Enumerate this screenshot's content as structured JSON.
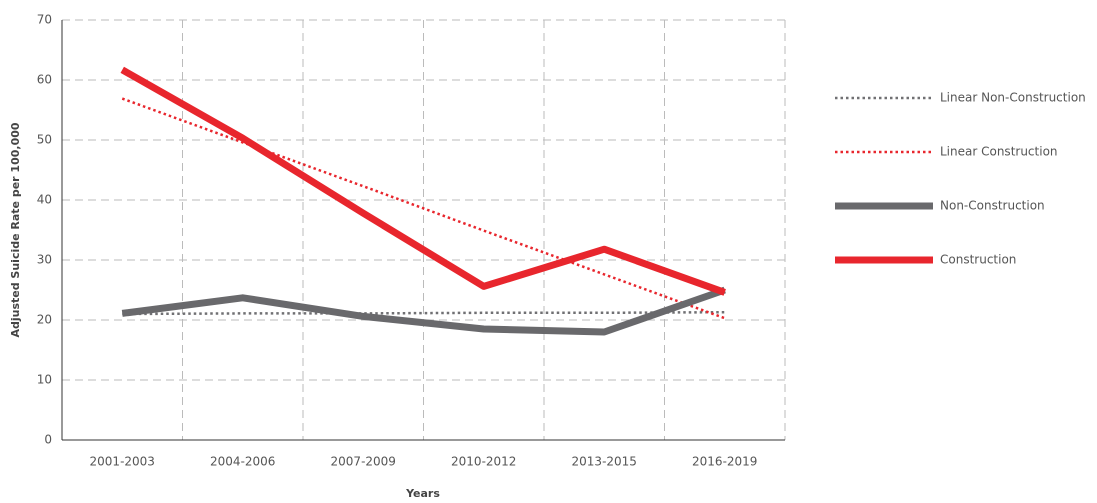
{
  "chart_data": {
    "type": "line",
    "y_label": "Adjusted Suicide Rate per 100,000",
    "x_label": "Years",
    "categories": [
      "2001-2003",
      "2004-2006",
      "2007-2009",
      "2010-2012",
      "2013-2015",
      "2016-2019"
    ],
    "series": [
      {
        "name": "Linear Non-Construction",
        "color": "#707073",
        "dotted": true,
        "values": [
          21.0,
          21.1,
          21.1,
          21.2,
          21.2,
          21.3
        ]
      },
      {
        "name": "Linear Construction",
        "color": "#e8262d",
        "dotted": true,
        "values": [
          56.9,
          49.6,
          42.3,
          34.9,
          27.6,
          20.3
        ]
      },
      {
        "name": "Non-Construction",
        "color": "#69696c",
        "dotted": false,
        "values": [
          21.1,
          23.7,
          20.6,
          18.5,
          18.0,
          25.0
        ]
      },
      {
        "name": "Construction",
        "color": "#e8262d",
        "dotted": false,
        "values": [
          61.7,
          50.3,
          37.8,
          25.6,
          31.8,
          24.6
        ]
      }
    ],
    "ylim": [
      0,
      70
    ],
    "yticks": [
      0,
      10,
      20,
      30,
      40,
      50,
      60,
      70
    ],
    "grid": true,
    "legend": "right"
  }
}
